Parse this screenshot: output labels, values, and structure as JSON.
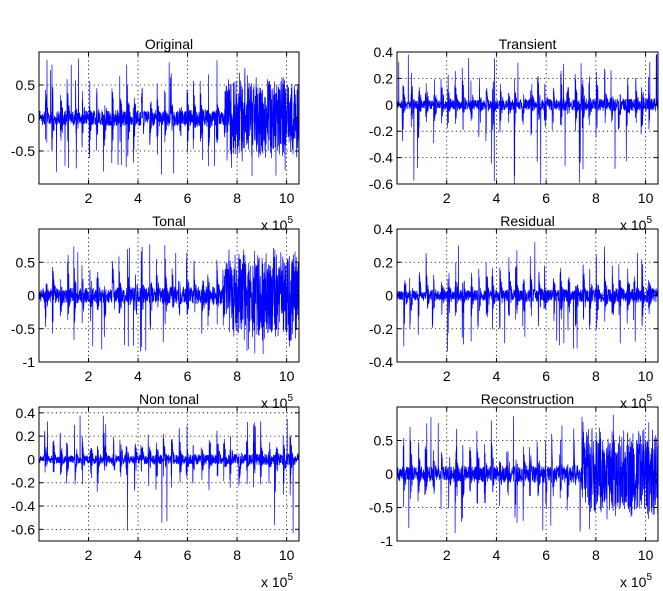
{
  "figure": {
    "background": "#ffffff",
    "series_color": "#0000ff",
    "x_multiplier_label": "x 10",
    "x_multiplier_exponent": "5",
    "grid": true,
    "xlim": [
      0,
      1050000
    ],
    "xticks": [
      200000,
      400000,
      600000,
      800000,
      1000000
    ],
    "xtick_labels": [
      "2",
      "4",
      "6",
      "8",
      "10"
    ]
  },
  "chart_data": [
    {
      "type": "line",
      "title": "Original",
      "xlabel": "",
      "ylabel": "",
      "xlim": [
        0,
        1050000
      ],
      "ylim": [
        -1,
        1
      ],
      "yticks": [
        0.5,
        0,
        -0.5
      ],
      "ytick_labels": [
        "0.5",
        "0",
        "-0.5"
      ],
      "grid": true,
      "series": [
        {
          "values_description": "audio waveform",
          "peak_amplitude": 0.9,
          "dense_from": 750000
        }
      ]
    },
    {
      "type": "line",
      "title": "Transient",
      "xlabel": "",
      "ylabel": "",
      "xlim": [
        0,
        1050000
      ],
      "ylim": [
        -0.6,
        0.4
      ],
      "yticks": [
        0.4,
        0.2,
        0,
        -0.2,
        -0.4,
        -0.6
      ],
      "ytick_labels": [
        "0.4",
        "0.2",
        "0",
        "-0.2",
        "-0.4",
        "-0.6"
      ],
      "grid": true,
      "series": [
        {
          "peak_amplitude": 0.4,
          "min_amplitude": -0.6
        }
      ]
    },
    {
      "type": "line",
      "title": "Tonal",
      "xlabel": "",
      "ylabel": "",
      "xlim": [
        0,
        1050000
      ],
      "ylim": [
        -1,
        1
      ],
      "yticks": [
        0.5,
        0,
        -0.5,
        -1
      ],
      "ytick_labels": [
        "0.5",
        "0",
        "-0.5",
        "-1"
      ],
      "grid": true,
      "series": [
        {
          "peak_amplitude": 0.9,
          "dense_from": 750000
        }
      ]
    },
    {
      "type": "line",
      "title": "Residual",
      "xlabel": "",
      "ylabel": "",
      "xlim": [
        0,
        1050000
      ],
      "ylim": [
        -0.4,
        0.4
      ],
      "yticks": [
        0.4,
        0.2,
        0,
        -0.2,
        -0.4
      ],
      "ytick_labels": [
        "0.4",
        "0.2",
        "0",
        "-0.2",
        "-0.4"
      ],
      "grid": true,
      "series": [
        {
          "peak_amplitude": 0.35
        }
      ]
    },
    {
      "type": "line",
      "title": "Non tonal",
      "xlabel": "",
      "ylabel": "",
      "xlim": [
        0,
        1050000
      ],
      "ylim": [
        -0.7,
        0.45
      ],
      "yticks": [
        0.4,
        0.2,
        0,
        -0.2,
        -0.4,
        -0.6
      ],
      "ytick_labels": [
        "0.4",
        "0.2",
        "0",
        "-0.2",
        "-0.4",
        "-0.6"
      ],
      "grid": true,
      "series": [
        {
          "peak_amplitude": 0.4,
          "min_amplitude": -0.7
        }
      ]
    },
    {
      "type": "line",
      "title": "Reconstruction",
      "xlabel": "",
      "ylabel": "",
      "xlim": [
        0,
        1050000
      ],
      "ylim": [
        -1,
        1
      ],
      "yticks": [
        0.5,
        0,
        -0.5,
        -1
      ],
      "ytick_labels": [
        "0.5",
        "0",
        "-0.5",
        "-1"
      ],
      "grid": true,
      "series": [
        {
          "peak_amplitude": 0.9,
          "dense_from": 750000
        }
      ]
    }
  ]
}
